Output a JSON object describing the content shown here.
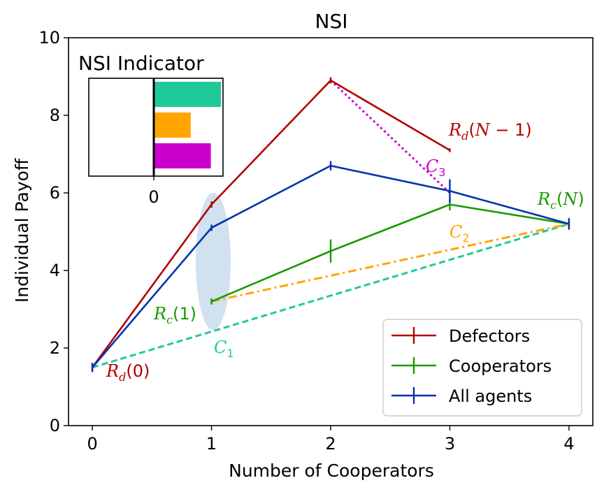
{
  "chart_data": {
    "type": "line",
    "title": "NSI",
    "xlabel": "Number of Cooperators",
    "ylabel": "Individual Payoff",
    "xlim": [
      -0.2,
      4.2
    ],
    "ylim": [
      0,
      10
    ],
    "xticks": [
      "0",
      "1",
      "2",
      "3",
      "4"
    ],
    "yticks": [
      "0",
      "2",
      "4",
      "6",
      "8",
      "10"
    ],
    "grid": false,
    "legend_position": "lower-right",
    "series": [
      {
        "name": "Defectors",
        "color": "#b30000",
        "x": [
          0,
          1,
          2,
          3
        ],
        "y": [
          1.5,
          5.7,
          8.9,
          7.1
        ],
        "err": [
          0.12,
          0.08,
          0.08,
          0.05
        ]
      },
      {
        "name": "Cooperators",
        "color": "#1a9900",
        "x": [
          1,
          3,
          4
        ],
        "y": [
          3.2,
          5.7,
          5.2
        ],
        "err": [
          0.08,
          0.15,
          0.1
        ]
      },
      {
        "name": "All agents",
        "color": "#0033aa",
        "x": [
          0,
          1,
          2,
          3,
          4
        ],
        "y": [
          1.5,
          5.1,
          6.7,
          6.05,
          5.2
        ],
        "err": [
          0.1,
          0.08,
          0.12,
          0.3,
          0.15
        ]
      }
    ],
    "cooperator_midpoint": {
      "x": 2,
      "y": 4.5,
      "err": 0.3
    },
    "reference_lines": [
      {
        "label": "C1",
        "color": "#1fc99a",
        "style": "dashed",
        "x": [
          0,
          4
        ],
        "y": [
          1.5,
          5.2
        ]
      },
      {
        "label": "C2",
        "color": "#ffa500",
        "style": "dashdot",
        "x": [
          1,
          4
        ],
        "y": [
          3.2,
          5.2
        ]
      },
      {
        "label": "C3",
        "color": "#cc00cc",
        "style": "dotted",
        "x": [
          2,
          3
        ],
        "y": [
          8.9,
          6.0
        ]
      }
    ],
    "annotations": [
      {
        "text": "R_d(0)",
        "color": "#b30000"
      },
      {
        "text": "R_c(1)",
        "color": "#1a9900"
      },
      {
        "text": "R_d(N − 1)",
        "color": "#b30000"
      },
      {
        "text": "R_c(N)",
        "color": "#1a9900"
      },
      {
        "text": "C_1",
        "color": "#1fc99a"
      },
      {
        "text": "C_2",
        "color": "#ffa500"
      },
      {
        "text": "C_3",
        "color": "#cc00cc"
      }
    ],
    "inset": {
      "title": "NSI Indicator",
      "xtick": "0",
      "bars": [
        {
          "label": "C1",
          "color": "#1fc99a",
          "value": 1.0
        },
        {
          "label": "C2",
          "color": "#ffa500",
          "value": 0.55
        },
        {
          "label": "C3",
          "color": "#cc00cc",
          "value": 0.85
        }
      ]
    }
  }
}
